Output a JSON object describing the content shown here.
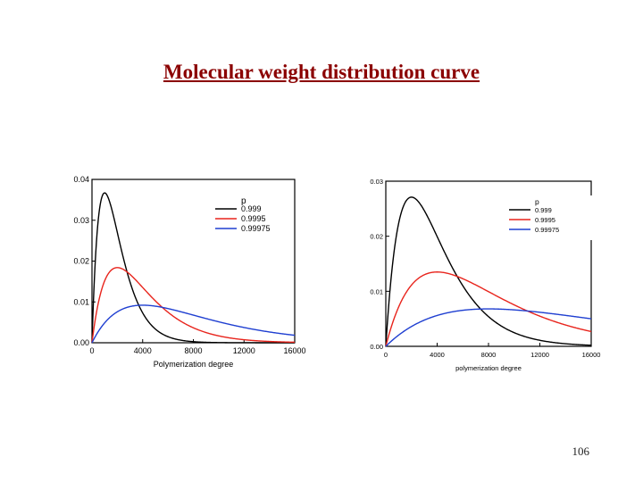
{
  "slide": {
    "title": "Molecular weight distribution curve",
    "page_number": "106"
  },
  "chart_data": [
    {
      "type": "line",
      "title": "",
      "xlabel": "Polymerization degree",
      "ylabel": "",
      "xlim": [
        0,
        16000
      ],
      "ylim": [
        0,
        0.04
      ],
      "x_ticks": [
        "0",
        "4000",
        "8000",
        "12000",
        "16000"
      ],
      "y_ticks": [
        "0.00",
        "0.01",
        "0.02",
        "0.03",
        "0.04"
      ],
      "legend": {
        "title": "p",
        "position": "top-right"
      },
      "series": [
        {
          "name": "0.999",
          "color": "#000000",
          "dist": {
            "n_peak": 1000,
            "y_peak": 0.0367
          }
        },
        {
          "name": "0.9995",
          "color": "#e8241c",
          "dist": {
            "n_peak": 2000,
            "y_peak": 0.0184
          }
        },
        {
          "name": "0.99975",
          "color": "#1f3fd1",
          "dist": {
            "n_peak": 4000,
            "y_peak": 0.0092
          }
        }
      ]
    },
    {
      "type": "line",
      "title": "",
      "xlabel": "polymerization degree",
      "ylabel": "",
      "xlim": [
        0,
        16000
      ],
      "ylim": [
        0,
        0.03
      ],
      "x_ticks": [
        "0",
        "4000",
        "8000",
        "12000",
        "16000"
      ],
      "y_ticks": [
        "0.00",
        "0.01",
        "0.02",
        "0.03"
      ],
      "legend": {
        "title": "p",
        "position": "top-right"
      },
      "series": [
        {
          "name": "0.999",
          "color": "#000000",
          "dist": {
            "n_peak": 2000,
            "y_peak": 0.0271
          }
        },
        {
          "name": "0.9995",
          "color": "#e8241c",
          "dist": {
            "n_peak": 4000,
            "y_peak": 0.0135
          }
        },
        {
          "name": "0.99975",
          "color": "#1f3fd1",
          "dist": {
            "n_peak": 8000,
            "y_peak": 0.0068
          }
        }
      ]
    }
  ]
}
